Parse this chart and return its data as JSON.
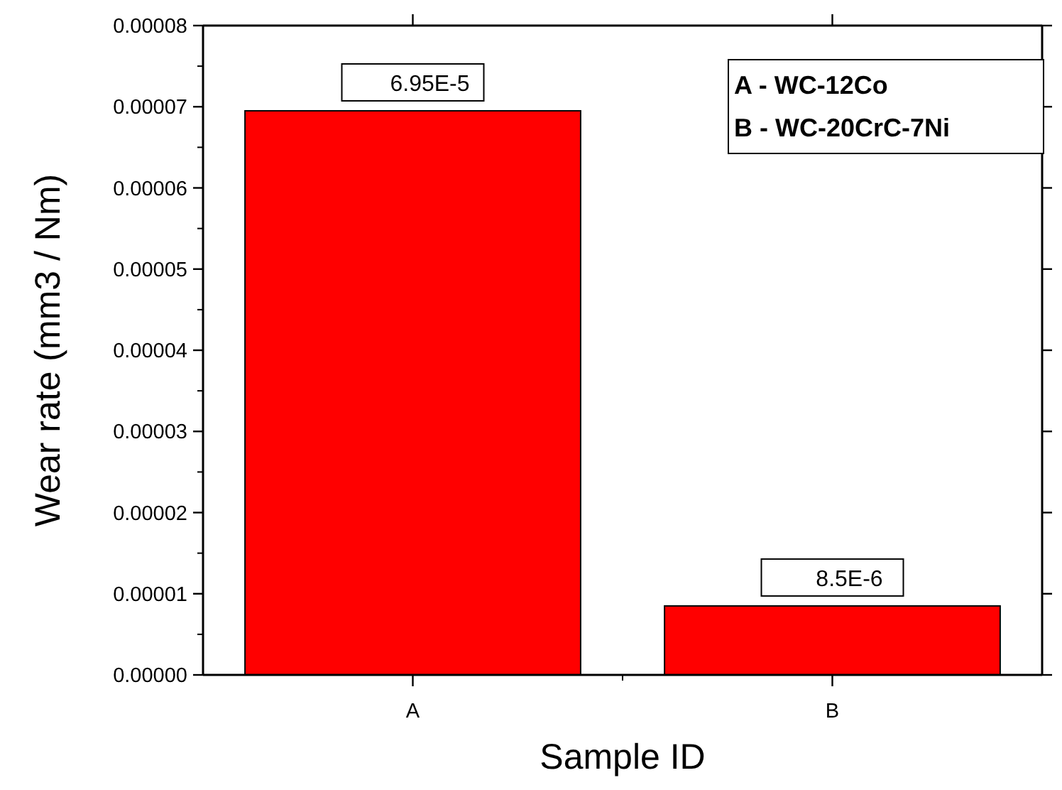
{
  "chart_data": {
    "type": "bar",
    "xlabel": "Sample ID",
    "ylabel": "Wear rate (mm3 / Nm)",
    "categories": [
      "A",
      "B"
    ],
    "values": [
      6.95e-05,
      8.5e-06
    ],
    "value_labels": [
      "6.95E-5",
      "8.5E-6"
    ],
    "color": "#ff0000",
    "ylim": [
      0,
      8e-05
    ],
    "yticks": [
      {
        "value": 0,
        "label": "0.00000"
      },
      {
        "value": 1e-05,
        "label": "0.00001"
      },
      {
        "value": 2e-05,
        "label": "0.00002"
      },
      {
        "value": 3e-05,
        "label": "0.00003"
      },
      {
        "value": 4e-05,
        "label": "0.00004"
      },
      {
        "value": 5e-05,
        "label": "0.00005"
      },
      {
        "value": 6e-05,
        "label": "0.00006"
      },
      {
        "value": 7e-05,
        "label": "0.00007"
      },
      {
        "value": 8e-05,
        "label": "0.00008"
      }
    ],
    "annotations": [
      "A - WC-12Co",
      "B - WC-20CrC-7Ni"
    ],
    "grid": false
  }
}
